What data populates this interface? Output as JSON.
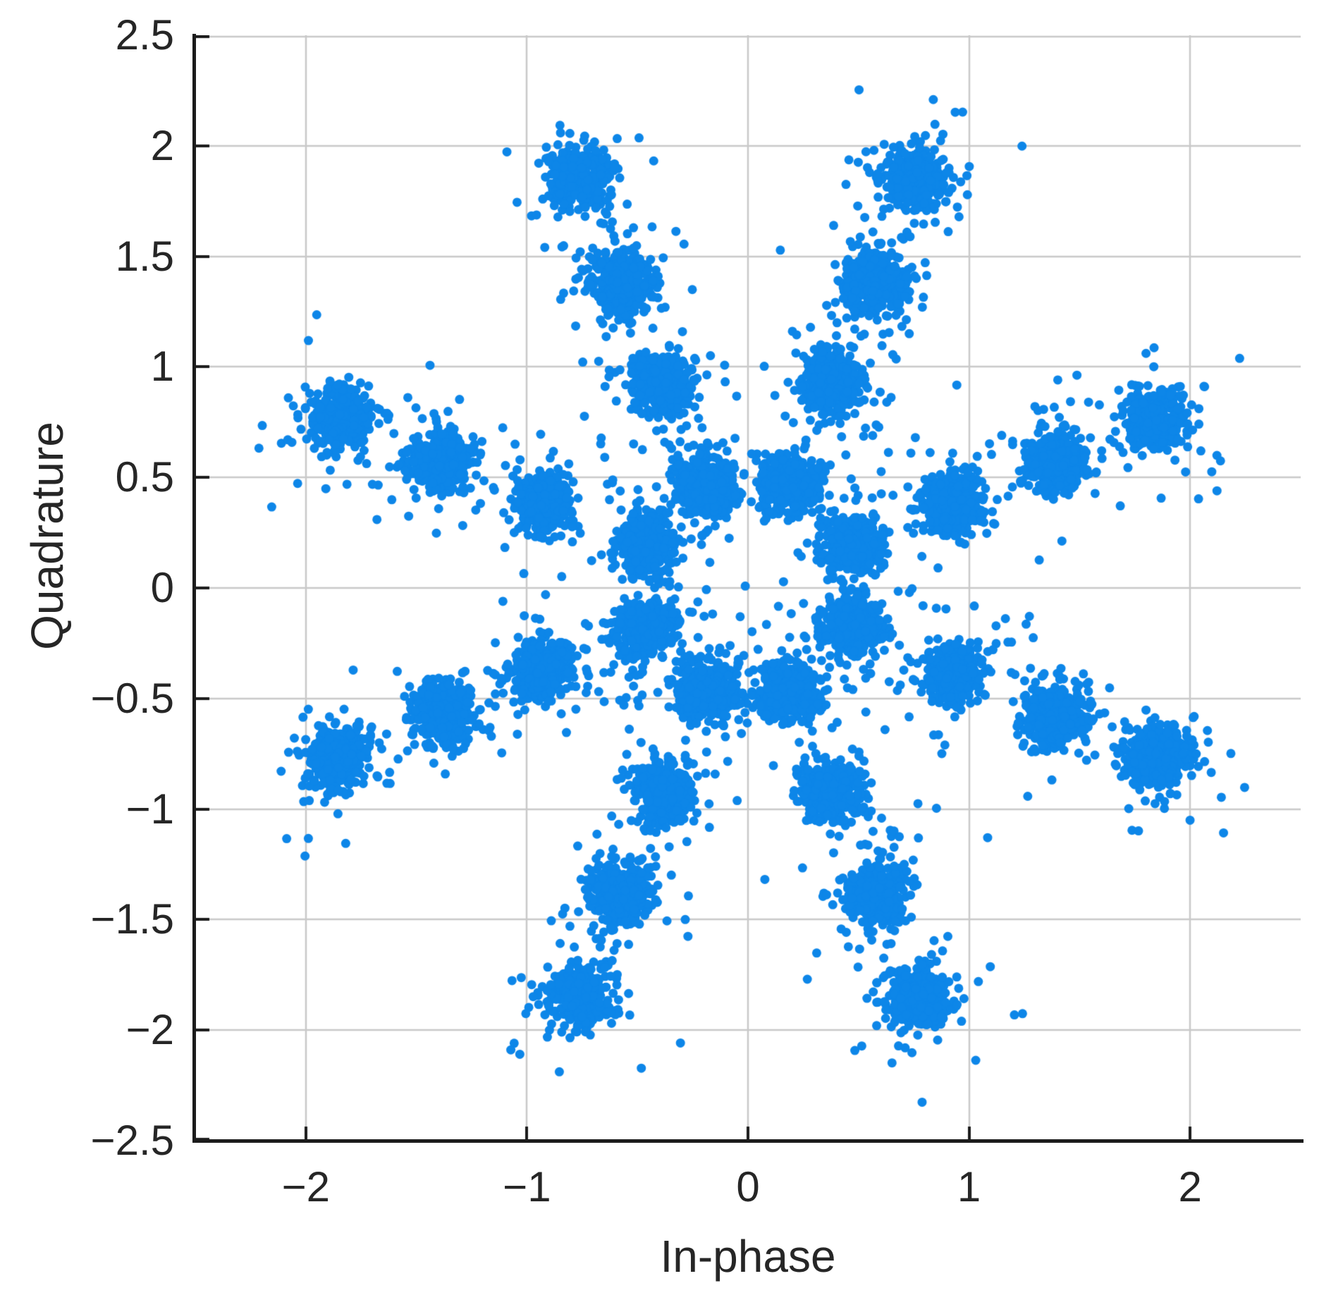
{
  "chart_data": {
    "type": "scatter",
    "title": "",
    "xlabel": "In-phase",
    "ylabel": "Quadrature",
    "xlim": [
      -2.5,
      2.5
    ],
    "ylim": [
      -2.5,
      2.5
    ],
    "grid": true,
    "legend": "none",
    "x_ticks": [
      -2,
      -1,
      0,
      1,
      2
    ],
    "x_tick_labels": [
      "−2",
      "−1",
      "0",
      "1",
      "2"
    ],
    "y_ticks": [
      2.5,
      2,
      1.5,
      1,
      0.5,
      0,
      -0.5,
      -1,
      -1.5,
      -2,
      -2.5
    ],
    "y_tick_labels": [
      "2.5",
      "2",
      "1.5",
      "1",
      "0.5",
      "0",
      "−0.5",
      "−1",
      "−1.5",
      "−2",
      "−2.5"
    ],
    "x_gridlines": [
      -2,
      -1,
      0,
      1,
      2
    ],
    "y_gridlines": [
      2.5,
      2,
      1.5,
      1,
      0.5,
      0,
      -0.5,
      -1,
      -1.5,
      -2
    ],
    "marker_color": "#0d86e8",
    "grid_color": "#c9c9c9",
    "axis_color": "#1b1b1b",
    "text_color": "#262626",
    "constellation": {
      "description": "32-point star constellation: 8 phase arms x 4 amplitude rings, Gaussian noise clouds",
      "ring_radii": [
        0.5,
        1.0,
        1.5,
        2.0
      ],
      "arm_angles_deg": [
        22.5,
        67.5,
        112.5,
        157.5,
        202.5,
        247.5,
        292.5,
        337.5
      ],
      "cluster_centers": [
        [
          0.462,
          0.191
        ],
        [
          0.924,
          0.383
        ],
        [
          1.386,
          0.574
        ],
        [
          1.848,
          0.765
        ],
        [
          0.191,
          0.462
        ],
        [
          0.383,
          0.924
        ],
        [
          0.574,
          1.386
        ],
        [
          0.765,
          1.848
        ],
        [
          -0.191,
          0.462
        ],
        [
          -0.383,
          0.924
        ],
        [
          -0.574,
          1.386
        ],
        [
          -0.765,
          1.848
        ],
        [
          -0.462,
          0.191
        ],
        [
          -0.924,
          0.383
        ],
        [
          -1.386,
          0.574
        ],
        [
          -1.848,
          0.765
        ],
        [
          -0.462,
          -0.191
        ],
        [
          -0.924,
          -0.383
        ],
        [
          -1.386,
          -0.574
        ],
        [
          -1.848,
          -0.765
        ],
        [
          -0.191,
          -0.462
        ],
        [
          -0.383,
          -0.924
        ],
        [
          -0.574,
          -1.386
        ],
        [
          -0.765,
          -1.848
        ],
        [
          0.191,
          -0.462
        ],
        [
          0.383,
          -0.924
        ],
        [
          0.574,
          -1.386
        ],
        [
          0.765,
          -1.848
        ],
        [
          0.462,
          -0.191
        ],
        [
          0.924,
          -0.383
        ],
        [
          1.386,
          -0.574
        ],
        [
          1.848,
          -0.765
        ]
      ],
      "points_per_cluster": 400,
      "noise_sigma": 0.068,
      "outlier_fraction": 0.08,
      "outlier_sigma_scale": 2.6,
      "marker_radius_px": 6.5,
      "random_seed": 11
    }
  }
}
